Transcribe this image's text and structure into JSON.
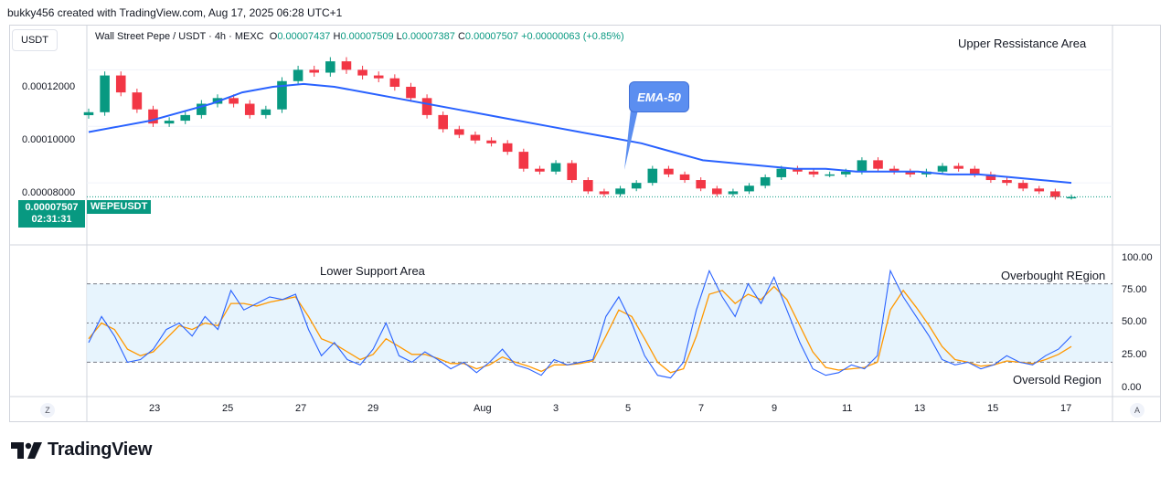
{
  "header": {
    "text": "bukky456 created with TradingView.com, Aug 17, 2025 06:28 UTC+1"
  },
  "symbol": {
    "currency_button": "USDT",
    "title": "Wall Street Pepe / USDT · 4h · MEXC",
    "open_label": "O",
    "open": "0.00007437",
    "high_label": "H",
    "high": "0.00007509",
    "low_label": "L",
    "low": "0.00007387",
    "close_label": "C",
    "close": "0.00007507",
    "change": "+0.00000063 (+0.85%)"
  },
  "price_tag": {
    "price": "0.00007507",
    "countdown": "02:31:31",
    "ticker": "WEPEUSDT"
  },
  "price_axis": [
    "0.00012000",
    "0.00010000",
    "0.00008000"
  ],
  "rsi_axis": [
    "100.00",
    "75.00",
    "50.00",
    "25.00",
    "0.00"
  ],
  "time_axis": [
    "23",
    "25",
    "27",
    "29",
    "Aug",
    "3",
    "5",
    "7",
    "9",
    "11",
    "13",
    "15",
    "17"
  ],
  "annotations": {
    "upper": "Upper Ressistance Area",
    "lower": "Lower Support Area",
    "overbought": "Overbought REgion",
    "oversold": "Oversold Region",
    "ema": "EMA-50"
  },
  "buttons": {
    "goto": "Z",
    "auto": "A"
  },
  "brand": "TradingView",
  "colors": {
    "up": "#089981",
    "down": "#f23645",
    "ema": "#2962ff",
    "rsi": "#2962ff",
    "rsi_ma": "#ff9800",
    "rsi_band": "#e3f2fd"
  },
  "chart_data": [
    {
      "type": "candlestick",
      "title": "Wall Street Pepe / USDT · 4h · MEXC",
      "ylim": [
        6e-05,
        0.000135
      ],
      "x_ticks": [
        "23",
        "25",
        "27",
        "29",
        "Aug",
        "3",
        "5",
        "7",
        "9",
        "11",
        "13",
        "15",
        "17"
      ],
      "closes": [
        0.000105,
        0.000118,
        0.000112,
        0.000106,
        0.000101,
        0.000102,
        0.000104,
        0.000108,
        0.00011,
        0.000108,
        0.000104,
        0.000106,
        0.000116,
        0.00012,
        0.000119,
        0.000123,
        0.00012,
        0.000118,
        0.000117,
        0.000114,
        0.00011,
        0.000104,
        9.9e-05,
        9.7e-05,
        9.5e-05,
        9.4e-05,
        9.1e-05,
        8.5e-05,
        8.4e-05,
        8.7e-05,
        8.1e-05,
        7.7e-05,
        7.6e-05,
        7.8e-05,
        8e-05,
        8.5e-05,
        8.3e-05,
        8.1e-05,
        7.8e-05,
        7.6e-05,
        7.7e-05,
        7.9e-05,
        8.2e-05,
        8.5e-05,
        8.4e-05,
        8.3e-05,
        8.3e-05,
        8.4e-05,
        8.8e-05,
        8.5e-05,
        8.4e-05,
        8.3e-05,
        8.4e-05,
        8.6e-05,
        8.5e-05,
        8.3e-05,
        8.1e-05,
        8e-05,
        7.8e-05,
        7.7e-05,
        7.5e-05,
        7.5e-05
      ],
      "ema50": [
        9.8e-05,
        0.0001,
        0.000102,
        0.000105,
        0.000108,
        0.000112,
        0.000114,
        0.000115,
        0.000114,
        0.000112,
        0.00011,
        0.000108,
        0.000106,
        0.000104,
        0.000102,
        0.0001,
        9.8e-05,
        9.6e-05,
        9.4e-05,
        9.1e-05,
        8.8e-05,
        8.7e-05,
        8.6e-05,
        8.5e-05,
        8.5e-05,
        8.4e-05,
        8.4e-05,
        8.4e-05,
        8.3e-05,
        8.3e-05,
        8.2e-05,
        8.1e-05,
        8e-05
      ],
      "last_price": 7.507e-05
    },
    {
      "type": "line",
      "title": "RSI",
      "ylim": [
        0,
        100
      ],
      "bands": [
        20,
        50,
        80
      ],
      "series": [
        {
          "values": [
            35,
            55,
            40,
            20,
            22,
            30,
            45,
            50,
            40,
            55,
            45,
            75,
            60,
            65,
            70,
            68,
            72,
            45,
            25,
            35,
            22,
            18,
            30,
            50,
            25,
            20,
            28,
            22,
            15,
            20,
            12,
            20,
            30,
            18,
            15,
            10,
            22,
            18,
            20,
            22,
            55,
            70,
            50,
            25,
            10,
            8,
            20,
            60,
            90,
            70,
            55,
            80,
            65,
            85,
            60,
            35,
            15,
            10,
            12,
            18,
            15,
            25,
            90,
            70,
            55,
            40,
            22,
            18,
            20,
            15,
            18,
            25,
            20,
            18,
            25,
            30,
            40
          ]
        },
        {
          "values": [
            38,
            50,
            45,
            30,
            25,
            28,
            38,
            48,
            45,
            50,
            48,
            65,
            65,
            63,
            66,
            68,
            70,
            55,
            38,
            34,
            28,
            22,
            26,
            38,
            32,
            26,
            26,
            23,
            19,
            19,
            15,
            18,
            24,
            20,
            17,
            13,
            18,
            18,
            19,
            21,
            40,
            60,
            55,
            38,
            20,
            12,
            15,
            40,
            72,
            75,
            65,
            72,
            68,
            78,
            68,
            48,
            28,
            16,
            14,
            15,
            16,
            20,
            60,
            75,
            62,
            48,
            32,
            22,
            20,
            17,
            18,
            21,
            20,
            19,
            22,
            26,
            32
          ]
        }
      ]
    }
  ]
}
